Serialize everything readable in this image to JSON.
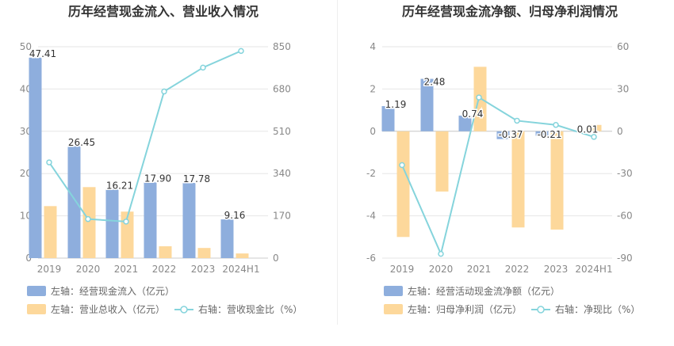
{
  "charts": [
    {
      "type": "bar-line-combo",
      "title": "历年经营现金流入、营业收入情况",
      "categories": [
        "2019",
        "2020",
        "2021",
        "2022",
        "2023",
        "2024H1"
      ],
      "left_axis": {
        "ylim": [
          0,
          50
        ],
        "ticks": [
          "0",
          "10",
          "20",
          "30",
          "40",
          "50"
        ]
      },
      "right_axis": {
        "ylim": [
          0,
          850
        ],
        "ticks": [
          "0",
          "170",
          "340",
          "510",
          "680",
          "850"
        ]
      },
      "series": [
        {
          "name": "左轴：经营现金流入（亿元）",
          "type": "bar",
          "axis": "left",
          "color": "#8eaedd",
          "values": [
            47.41,
            26.45,
            16.21,
            17.9,
            17.78,
            9.16
          ],
          "labels": [
            "47.41",
            "26.45",
            "16.21",
            "17.90",
            "17.78",
            "9.16"
          ]
        },
        {
          "name": "左轴：营业总收入（亿元）",
          "type": "bar",
          "axis": "left",
          "color": "#fdd89b",
          "values": [
            12.3,
            16.8,
            11.0,
            2.8,
            2.4,
            1.1
          ]
        },
        {
          "name": "右轴：营收现金比（%）",
          "type": "line",
          "axis": "right",
          "color": "#85d4dc",
          "values": [
            385,
            157,
            147,
            670,
            766,
            833
          ]
        }
      ],
      "legend": [
        {
          "label": "左轴：经营现金流入（亿元）",
          "kind": "bar",
          "color": "#8eaedd"
        },
        {
          "label": "左轴：营业总收入（亿元）",
          "kind": "bar",
          "color": "#fdd89b"
        },
        {
          "label": "右轴：营收现金比（%）",
          "kind": "line",
          "color": "#85d4dc"
        }
      ]
    },
    {
      "type": "bar-line-combo",
      "title": "历年经营现金流净额、归母净利润情况",
      "categories": [
        "2019",
        "2020",
        "2021",
        "2022",
        "2023",
        "2024H1"
      ],
      "left_axis": {
        "ylim": [
          -6,
          4
        ],
        "ticks": [
          "-6",
          "-4",
          "-2",
          "0",
          "2",
          "4"
        ]
      },
      "right_axis": {
        "ylim": [
          -90,
          60
        ],
        "ticks": [
          "-90",
          "-60",
          "-30",
          "0",
          "30",
          "60"
        ]
      },
      "series": [
        {
          "name": "左轴：经营活动现金流净额（亿元）",
          "type": "bar",
          "axis": "left",
          "color": "#8eaedd",
          "values": [
            1.19,
            2.48,
            0.74,
            -0.37,
            -0.21,
            0.01
          ],
          "labels": [
            "1.19",
            "2.48",
            "0.74",
            "-0.37",
            "-0.21",
            "0.01"
          ]
        },
        {
          "name": "左轴：归母净利润（亿元）",
          "type": "bar",
          "axis": "left",
          "color": "#fdd89b",
          "values": [
            -5.0,
            -2.85,
            3.05,
            -4.55,
            -4.65,
            0.3
          ]
        },
        {
          "name": "右轴：净现比（%）",
          "type": "line",
          "axis": "right",
          "color": "#85d4dc",
          "values": [
            -24,
            -87,
            24,
            7.5,
            4.5,
            -4
          ]
        }
      ],
      "legend": [
        {
          "label": "左轴：经营活动现金流净额（亿元）",
          "kind": "bar",
          "color": "#8eaedd"
        },
        {
          "label": "左轴：归母净利润（亿元）",
          "kind": "bar",
          "color": "#fdd89b"
        },
        {
          "label": "右轴：净现比（%）",
          "kind": "line",
          "color": "#85d4dc"
        }
      ]
    }
  ]
}
